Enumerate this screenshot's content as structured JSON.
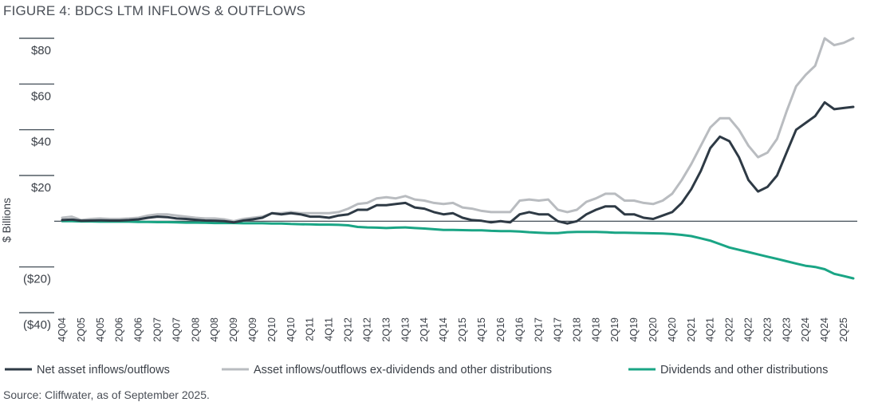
{
  "figure_title": "FIGURE 4: BDCS LTM INFLOWS & OUTFLOWS",
  "source_note": "Source: Cliffwater, as of September 2025.",
  "colors": {
    "net": "#2e3a45",
    "gross": "#b9bcc0",
    "dividends": "#1aa585",
    "zero_line": "#2e3a45",
    "tick_marks": "#2e3a45"
  },
  "chart_data": {
    "type": "line",
    "title": "",
    "xlabel": "",
    "ylabel": "$ Billions",
    "ylim": [
      -40,
      80
    ],
    "y_ticks": [
      80,
      60,
      40,
      20,
      0,
      -20,
      -40
    ],
    "y_tick_labels": [
      "$80",
      "$60",
      "$40",
      "$20",
      "",
      "($20)",
      "($40)"
    ],
    "x_tick_labels": [
      "4Q04",
      "2Q05",
      "4Q05",
      "2Q06",
      "4Q06",
      "2Q07",
      "4Q07",
      "2Q08",
      "4Q08",
      "2Q09",
      "4Q09",
      "2Q10",
      "4Q10",
      "2Q11",
      "4Q11",
      "2Q12",
      "4Q12",
      "2Q13",
      "4Q13",
      "2Q14",
      "4Q14",
      "2Q15",
      "4Q15",
      "2Q16",
      "4Q16",
      "2Q17",
      "4Q17",
      "2Q18",
      "4Q18",
      "2Q19",
      "4Q19",
      "2Q20",
      "4Q20",
      "2Q21",
      "4Q21",
      "2Q22",
      "4Q22",
      "2Q23",
      "4Q23",
      "2Q24",
      "4Q24",
      "2Q25"
    ],
    "x_quarters": [
      "4Q04",
      "1Q05",
      "2Q05",
      "3Q05",
      "4Q05",
      "1Q06",
      "2Q06",
      "3Q06",
      "4Q06",
      "1Q07",
      "2Q07",
      "3Q07",
      "4Q07",
      "1Q08",
      "2Q08",
      "3Q08",
      "4Q08",
      "1Q09",
      "2Q09",
      "3Q09",
      "4Q09",
      "1Q10",
      "2Q10",
      "3Q10",
      "4Q10",
      "1Q11",
      "2Q11",
      "3Q11",
      "4Q11",
      "1Q12",
      "2Q12",
      "3Q12",
      "4Q12",
      "1Q13",
      "2Q13",
      "3Q13",
      "4Q13",
      "1Q14",
      "2Q14",
      "3Q14",
      "4Q14",
      "1Q15",
      "2Q15",
      "3Q15",
      "4Q15",
      "1Q16",
      "2Q16",
      "3Q16",
      "4Q16",
      "1Q17",
      "2Q17",
      "3Q17",
      "4Q17",
      "1Q18",
      "2Q18",
      "3Q18",
      "4Q18",
      "1Q19",
      "2Q19",
      "3Q19",
      "4Q19",
      "1Q20",
      "2Q20",
      "3Q20",
      "4Q20",
      "1Q21",
      "2Q21",
      "3Q21",
      "4Q21",
      "1Q22",
      "2Q22",
      "3Q22",
      "4Q22",
      "1Q23",
      "2Q23",
      "3Q23",
      "4Q23",
      "1Q24",
      "2Q24",
      "3Q24",
      "4Q24",
      "1Q25",
      "2Q25",
      "3Q25"
    ],
    "legend_position": "bottom",
    "grid": false,
    "series": [
      {
        "key": "net",
        "name": "Net asset inflows/outflows",
        "values": [
          0.5,
          0.7,
          0.2,
          0.3,
          0.4,
          0.3,
          0.3,
          0.5,
          0.8,
          1.5,
          2.0,
          1.8,
          1.2,
          1.0,
          0.6,
          0.3,
          0.2,
          0.0,
          -0.5,
          0.3,
          0.8,
          1.5,
          3.5,
          3.0,
          3.5,
          3.0,
          2.0,
          2.0,
          1.5,
          2.5,
          3.0,
          5.0,
          5.0,
          7.0,
          7.0,
          7.5,
          8.0,
          6.0,
          5.5,
          4.0,
          3.0,
          3.5,
          1.5,
          0.5,
          0.2,
          -0.5,
          0.0,
          -0.5,
          3.0,
          4.0,
          3.0,
          3.0,
          0.0,
          -1.0,
          0.0,
          3.0,
          5.0,
          6.5,
          6.5,
          3.0,
          3.0,
          1.5,
          1.0,
          2.5,
          4.0,
          8.0,
          14.0,
          22.0,
          32.0,
          37.0,
          35.0,
          28.0,
          18.0,
          13.0,
          15.0,
          20.0,
          30.0,
          40.0,
          43.0,
          46.0,
          52.0,
          49.0,
          49.5,
          50.0
        ]
      },
      {
        "key": "gross",
        "name": "Asset inflows/outflows ex-dividends and other distributions",
        "values": [
          1.5,
          2.0,
          0.5,
          1.0,
          1.2,
          1.0,
          1.0,
          1.2,
          1.5,
          2.5,
          3.0,
          3.0,
          2.5,
          2.0,
          1.5,
          1.2,
          1.2,
          0.8,
          0.0,
          1.0,
          1.5,
          2.0,
          3.5,
          3.5,
          4.0,
          3.5,
          3.5,
          3.5,
          3.5,
          4.0,
          5.5,
          7.5,
          8.0,
          10.0,
          10.5,
          10.0,
          11.0,
          9.5,
          9.0,
          8.0,
          7.5,
          8.0,
          6.0,
          5.5,
          4.5,
          4.0,
          4.0,
          4.0,
          9.0,
          9.5,
          9.0,
          9.5,
          5.0,
          4.0,
          5.0,
          8.5,
          10.0,
          12.0,
          12.0,
          9.0,
          9.0,
          8.0,
          7.5,
          9.0,
          12.0,
          18.0,
          25.0,
          33.0,
          41.0,
          45.0,
          45.0,
          40.0,
          33.0,
          28.0,
          30.0,
          36.0,
          48.0,
          59.0,
          64.0,
          68.0,
          80.0,
          77.0,
          78.0,
          80.0
        ]
      },
      {
        "key": "dividends",
        "name": "Dividends and other distributions",
        "values": [
          0.0,
          0.0,
          -0.1,
          -0.1,
          -0.2,
          -0.2,
          -0.2,
          -0.2,
          -0.3,
          -0.3,
          -0.4,
          -0.4,
          -0.5,
          -0.6,
          -0.6,
          -0.7,
          -0.8,
          -0.8,
          -0.8,
          -0.9,
          -0.9,
          -0.9,
          -1.0,
          -1.0,
          -1.2,
          -1.3,
          -1.4,
          -1.5,
          -1.5,
          -1.6,
          -1.8,
          -2.5,
          -2.7,
          -2.8,
          -3.0,
          -2.8,
          -2.7,
          -3.0,
          -3.2,
          -3.5,
          -3.8,
          -3.8,
          -3.9,
          -4.0,
          -4.0,
          -4.2,
          -4.3,
          -4.3,
          -4.5,
          -4.8,
          -5.0,
          -5.2,
          -5.2,
          -4.8,
          -4.7,
          -4.7,
          -4.7,
          -4.8,
          -5.0,
          -5.0,
          -5.1,
          -5.2,
          -5.3,
          -5.4,
          -5.6,
          -6.0,
          -6.5,
          -7.5,
          -8.5,
          -10.0,
          -11.5,
          -12.5,
          -13.5,
          -14.5,
          -15.5,
          -16.5,
          -17.5,
          -18.5,
          -19.5,
          -20.0,
          -21.0,
          -23.0,
          -24.0,
          -25.0
        ]
      }
    ]
  }
}
